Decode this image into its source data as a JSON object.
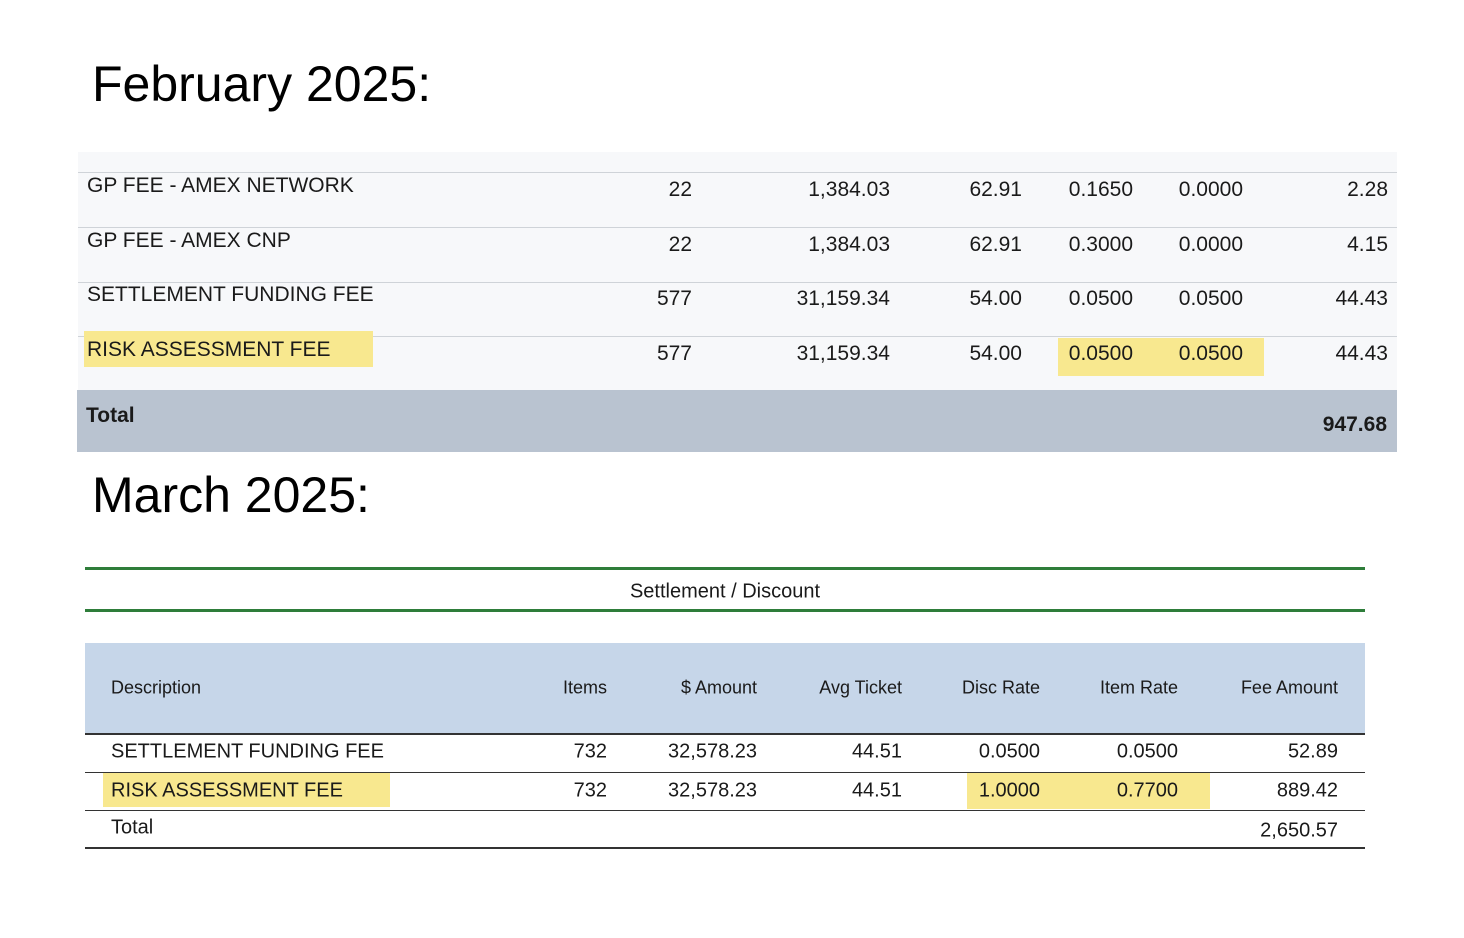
{
  "february": {
    "heading": "February 2025:",
    "rows": [
      [
        "GP FEE - AMEX NETWORK",
        "22",
        "1,384.03",
        "62.91",
        "0.1650",
        "0.0000",
        "2.28"
      ],
      [
        "GP FEE - AMEX CNP",
        "22",
        "1,384.03",
        "62.91",
        "0.3000",
        "0.0000",
        "4.15"
      ],
      [
        "SETTLEMENT FUNDING FEE",
        "577",
        "31,159.34",
        "54.00",
        "0.0500",
        "0.0500",
        "44.43"
      ],
      [
        "RISK ASSESSMENT FEE",
        "577",
        "31,159.34",
        "54.00",
        "0.0500",
        "0.0500",
        "44.43"
      ]
    ],
    "total": {
      "label": "Total",
      "amount": "947.68"
    }
  },
  "march": {
    "heading": "March 2025:",
    "title": "Settlement / Discount",
    "columns": [
      "Description",
      "Items",
      "$ Amount",
      "Avg Ticket",
      "Disc Rate",
      "Item Rate",
      "Fee Amount"
    ],
    "rows": [
      [
        "SETTLEMENT FUNDING FEE",
        "732",
        "32,578.23",
        "44.51",
        "0.0500",
        "0.0500",
        "52.89"
      ],
      [
        "RISK ASSESSMENT FEE",
        "732",
        "32,578.23",
        "44.51",
        "1.0000",
        "0.7700",
        "889.42"
      ]
    ],
    "total": {
      "label": "Total",
      "amount": "2,650.57"
    }
  }
}
